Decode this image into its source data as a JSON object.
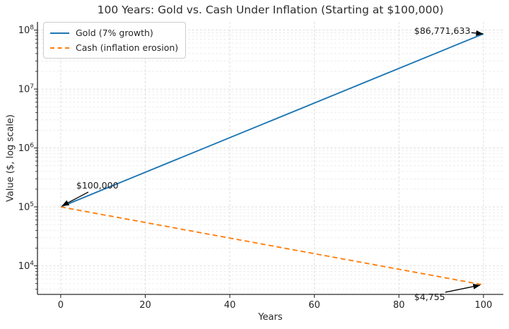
{
  "chart_data": {
    "type": "line",
    "title": "100 Years: Gold vs. Cash Under Inflation (Starting at $100,000)",
    "xlabel": "Years",
    "ylabel": "Value ($, log scale)",
    "x_ticks": [
      0,
      20,
      40,
      60,
      80,
      100
    ],
    "y_tick_base": "10",
    "y_tick_exponents": [
      4,
      5,
      6,
      7,
      8
    ],
    "xlim": [
      -5.5,
      104.7
    ],
    "ylim_log10": [
      3.515,
      8.14
    ],
    "y_scale": "log",
    "grid": {
      "which": "both",
      "style": "dashed"
    },
    "legend_position": "upper left",
    "series": [
      {
        "name": "Gold (7% growth)",
        "color": "#1f77b4",
        "line_style": "solid",
        "x": [
          0,
          100
        ],
        "y": [
          100000,
          86771633
        ]
      },
      {
        "name": "Cash (inflation erosion)",
        "color": "#ff7f0e",
        "line_style": "dashed",
        "x": [
          0,
          100
        ],
        "y": [
          100000,
          4755
        ]
      }
    ],
    "annotations": [
      {
        "label": "$100,000",
        "x": 0,
        "y": 100000,
        "text_offset": [
          22,
          -38
        ],
        "arrow_tail": [
          39,
          -21
        ],
        "arrow_head": [
          2,
          -1.5
        ]
      },
      {
        "label": "$86,771,633",
        "x": 100,
        "y": 86771633,
        "text_offset": [
          -98,
          -12
        ],
        "arrow_tail": [
          -17,
          -1.5
        ],
        "arrow_head": [
          -1,
          0
        ]
      },
      {
        "label": "$4,755",
        "x": 100,
        "y": 4755,
        "text_offset": [
          -98,
          10
        ],
        "arrow_tail": [
          -54,
          10.5
        ],
        "arrow_head": [
          -5,
          0.5
        ]
      }
    ],
    "colors": {
      "gold_line": "#1f77b4",
      "cash_line": "#ff7f0e",
      "grid_major": "#d9d9d9",
      "grid_minor": "#eaeaea",
      "axis": "#2b2b2b",
      "annotation_arrow": "#000000"
    }
  }
}
